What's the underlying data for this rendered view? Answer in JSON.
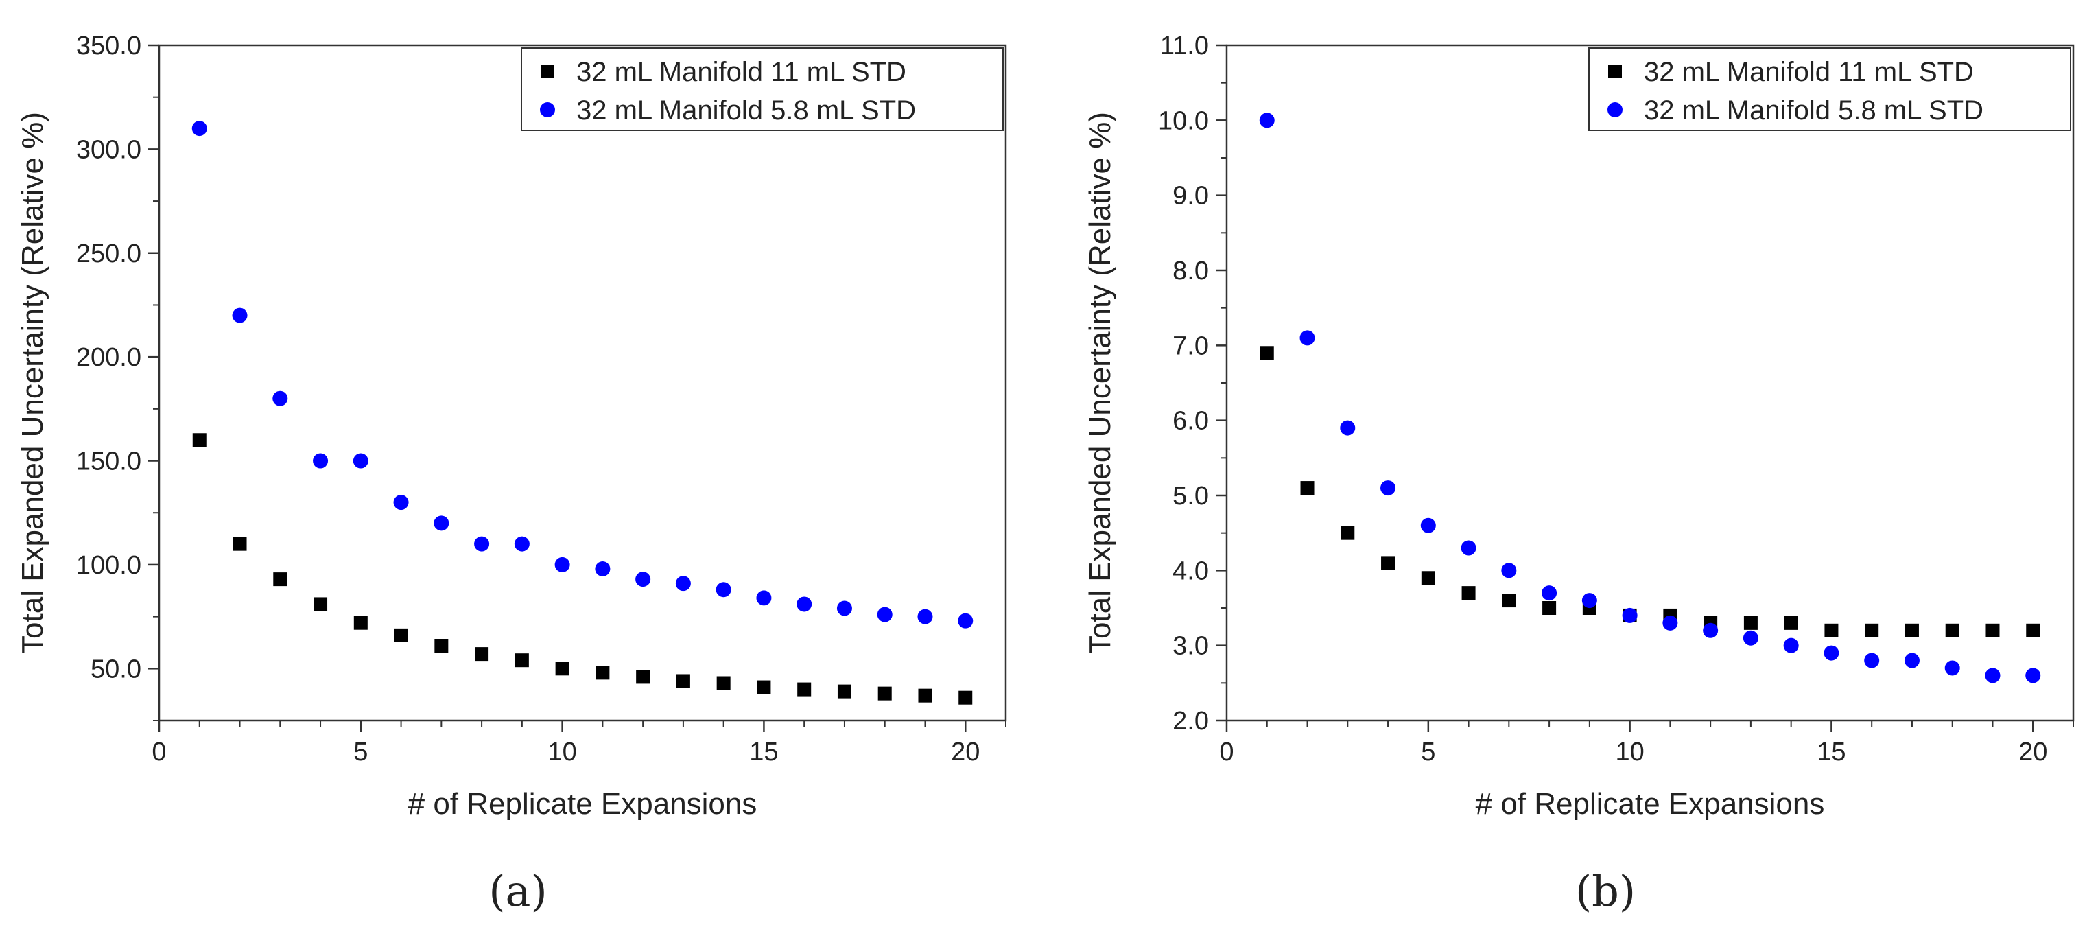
{
  "chart_data": [
    {
      "type": "scatter",
      "panel_label": "(a)",
      "xlabel": "# of Replicate Expansions",
      "ylabel": "Total Expanded Uncertainty (Relative %)",
      "xlim": [
        0,
        21
      ],
      "ylim": [
        25,
        350
      ],
      "xticks": [
        0,
        5,
        10,
        15,
        20
      ],
      "yticks": [
        50.0,
        100.0,
        150.0,
        200.0,
        250.0,
        300.0,
        350.0
      ],
      "ytick_decimals": 1,
      "legend_position": "top-right",
      "series": [
        {
          "name": "32 mL Manifold 11 mL STD",
          "marker": "square",
          "color": "#000000",
          "x": [
            1,
            2,
            3,
            4,
            5,
            6,
            7,
            8,
            9,
            10,
            11,
            12,
            13,
            14,
            15,
            16,
            17,
            18,
            19,
            20
          ],
          "y": [
            160,
            110,
            93,
            81,
            72,
            66,
            61,
            57,
            54,
            50,
            48,
            46,
            44,
            43,
            41,
            40,
            39,
            38,
            37,
            36
          ]
        },
        {
          "name": "32 mL Manifold 5.8 mL STD",
          "marker": "circle",
          "color": "#0000ff",
          "x": [
            1,
            2,
            3,
            4,
            5,
            6,
            7,
            8,
            9,
            10,
            11,
            12,
            13,
            14,
            15,
            16,
            17,
            18,
            19,
            20
          ],
          "y": [
            310,
            220,
            180,
            150,
            150,
            130,
            120,
            110,
            110,
            100,
            98,
            93,
            91,
            88,
            84,
            81,
            79,
            76,
            75,
            73
          ]
        }
      ]
    },
    {
      "type": "scatter",
      "panel_label": "(b)",
      "xlabel": "# of Replicate Expansions",
      "ylabel": "Total Expanded Uncertainty (Relative %)",
      "xlim": [
        0,
        21
      ],
      "ylim": [
        2.0,
        11.0
      ],
      "xticks": [
        0,
        5,
        10,
        15,
        20
      ],
      "yticks": [
        2.0,
        3.0,
        4.0,
        5.0,
        6.0,
        7.0,
        8.0,
        9.0,
        10.0,
        11.0
      ],
      "ytick_decimals": 1,
      "legend_position": "top-right",
      "series": [
        {
          "name": "32 mL Manifold 11 mL STD",
          "marker": "square",
          "color": "#000000",
          "x": [
            1,
            2,
            3,
            4,
            5,
            6,
            7,
            8,
            9,
            10,
            11,
            12,
            13,
            14,
            15,
            16,
            17,
            18,
            19,
            20
          ],
          "y": [
            6.9,
            5.1,
            4.5,
            4.1,
            3.9,
            3.7,
            3.6,
            3.5,
            3.5,
            3.4,
            3.4,
            3.3,
            3.3,
            3.3,
            3.2,
            3.2,
            3.2,
            3.2,
            3.2,
            3.2
          ]
        },
        {
          "name": "32 mL Manifold 5.8 mL STD",
          "marker": "circle",
          "color": "#0000ff",
          "x": [
            1,
            2,
            3,
            4,
            5,
            6,
            7,
            8,
            9,
            10,
            11,
            12,
            13,
            14,
            15,
            16,
            17,
            18,
            19,
            20
          ],
          "y": [
            10.0,
            7.1,
            5.9,
            5.1,
            4.6,
            4.3,
            4.0,
            3.7,
            3.6,
            3.4,
            3.3,
            3.2,
            3.1,
            3.0,
            2.9,
            2.8,
            2.8,
            2.7,
            2.6,
            2.6
          ]
        }
      ]
    }
  ]
}
